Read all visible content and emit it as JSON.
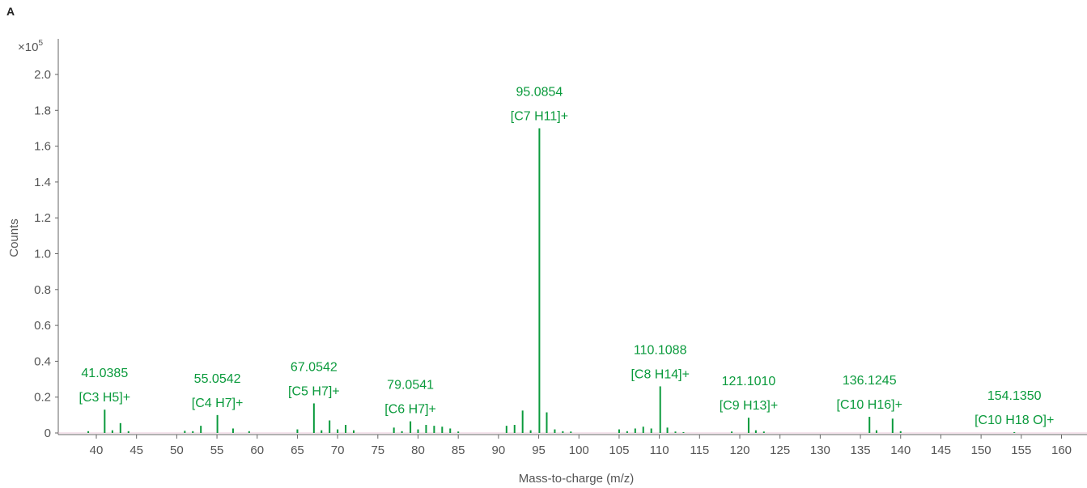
{
  "panel_label": "A",
  "chart_data": {
    "type": "bar",
    "xlabel": "Mass-to-charge (m/z)",
    "ylabel": "Counts",
    "y_multiplier": "×10",
    "y_multiplier_exp": "5",
    "xlim": [
      36,
      162
    ],
    "ylim": [
      0,
      2.1
    ],
    "x_ticks": [
      40,
      45,
      50,
      55,
      60,
      65,
      70,
      75,
      80,
      85,
      90,
      95,
      100,
      105,
      110,
      115,
      120,
      125,
      130,
      135,
      140,
      145,
      150,
      155,
      160
    ],
    "y_ticks": [
      0,
      0.2,
      0.4,
      0.6,
      0.8,
      1.0,
      1.2,
      1.4,
      1.6,
      1.8,
      2.0
    ],
    "y_tick_labels": [
      "0",
      "0.2",
      "0.4",
      "0.6",
      "0.8",
      "1.0",
      "1.2",
      "1.4",
      "1.6",
      "1.8",
      "2.0"
    ],
    "bar_color": "#0a9a3c",
    "peaks": [
      {
        "mz": 39.0,
        "intensity": 0.01
      },
      {
        "mz": 41.0385,
        "intensity": 0.13
      },
      {
        "mz": 42.0,
        "intensity": 0.015
      },
      {
        "mz": 43.0,
        "intensity": 0.055
      },
      {
        "mz": 44.0,
        "intensity": 0.01
      },
      {
        "mz": 51.0,
        "intensity": 0.012
      },
      {
        "mz": 52.0,
        "intensity": 0.01
      },
      {
        "mz": 53.0,
        "intensity": 0.04
      },
      {
        "mz": 55.0542,
        "intensity": 0.1
      },
      {
        "mz": 57.0,
        "intensity": 0.025
      },
      {
        "mz": 59.0,
        "intensity": 0.01
      },
      {
        "mz": 65.0,
        "intensity": 0.02
      },
      {
        "mz": 67.0542,
        "intensity": 0.165
      },
      {
        "mz": 68.0,
        "intensity": 0.015
      },
      {
        "mz": 69.0,
        "intensity": 0.07
      },
      {
        "mz": 70.0,
        "intensity": 0.02
      },
      {
        "mz": 71.0,
        "intensity": 0.045
      },
      {
        "mz": 72.0,
        "intensity": 0.015
      },
      {
        "mz": 77.0,
        "intensity": 0.03
      },
      {
        "mz": 78.0,
        "intensity": 0.01
      },
      {
        "mz": 79.0541,
        "intensity": 0.065
      },
      {
        "mz": 80.0,
        "intensity": 0.02
      },
      {
        "mz": 81.0,
        "intensity": 0.045
      },
      {
        "mz": 82.0,
        "intensity": 0.04
      },
      {
        "mz": 83.0,
        "intensity": 0.035
      },
      {
        "mz": 84.0,
        "intensity": 0.025
      },
      {
        "mz": 85.0,
        "intensity": 0.008
      },
      {
        "mz": 91.0,
        "intensity": 0.04
      },
      {
        "mz": 92.0,
        "intensity": 0.045
      },
      {
        "mz": 93.0,
        "intensity": 0.125
      },
      {
        "mz": 94.0,
        "intensity": 0.015
      },
      {
        "mz": 95.0854,
        "intensity": 1.7
      },
      {
        "mz": 96.0,
        "intensity": 0.115
      },
      {
        "mz": 97.0,
        "intensity": 0.02
      },
      {
        "mz": 98.0,
        "intensity": 0.01
      },
      {
        "mz": 99.0,
        "intensity": 0.008
      },
      {
        "mz": 105.0,
        "intensity": 0.02
      },
      {
        "mz": 106.0,
        "intensity": 0.01
      },
      {
        "mz": 107.0,
        "intensity": 0.025
      },
      {
        "mz": 108.0,
        "intensity": 0.035
      },
      {
        "mz": 109.0,
        "intensity": 0.025
      },
      {
        "mz": 110.1088,
        "intensity": 0.26
      },
      {
        "mz": 111.0,
        "intensity": 0.03
      },
      {
        "mz": 112.0,
        "intensity": 0.008
      },
      {
        "mz": 113.0,
        "intensity": 0.005
      },
      {
        "mz": 119.0,
        "intensity": 0.008
      },
      {
        "mz": 121.101,
        "intensity": 0.085
      },
      {
        "mz": 122.0,
        "intensity": 0.015
      },
      {
        "mz": 123.0,
        "intensity": 0.008
      },
      {
        "mz": 136.1245,
        "intensity": 0.09
      },
      {
        "mz": 137.0,
        "intensity": 0.015
      },
      {
        "mz": 139.0,
        "intensity": 0.08
      },
      {
        "mz": 140.0,
        "intensity": 0.01
      },
      {
        "mz": 154.135,
        "intensity": 0.005
      }
    ],
    "annotations": [
      {
        "mz": 41.0385,
        "intensity": 0.13,
        "mass": "41.0385",
        "formula": "[C3 H5]+"
      },
      {
        "mz": 55.0542,
        "intensity": 0.1,
        "mass": "55.0542",
        "formula": "[C4 H7]+"
      },
      {
        "mz": 67.0542,
        "intensity": 0.165,
        "mass": "67.0542",
        "formula": "[C5 H7]+"
      },
      {
        "mz": 79.0541,
        "intensity": 0.065,
        "mass": "79.0541",
        "formula": "[C6 H7]+"
      },
      {
        "mz": 95.0854,
        "intensity": 1.7,
        "mass": "95.0854",
        "formula": "[C7 H11]+"
      },
      {
        "mz": 110.1088,
        "intensity": 0.26,
        "mass": "110.1088",
        "formula": "[C8 H14]+"
      },
      {
        "mz": 121.101,
        "intensity": 0.085,
        "mass": "121.1010",
        "formula": "[C9 H13]+"
      },
      {
        "mz": 136.1245,
        "intensity": 0.09,
        "mass": "136.1245",
        "formula": "[C10 H16]+"
      },
      {
        "mz": 154.135,
        "intensity": 0.005,
        "mass": "154.1350",
        "formula": "[C10 H18 O]+"
      }
    ]
  }
}
